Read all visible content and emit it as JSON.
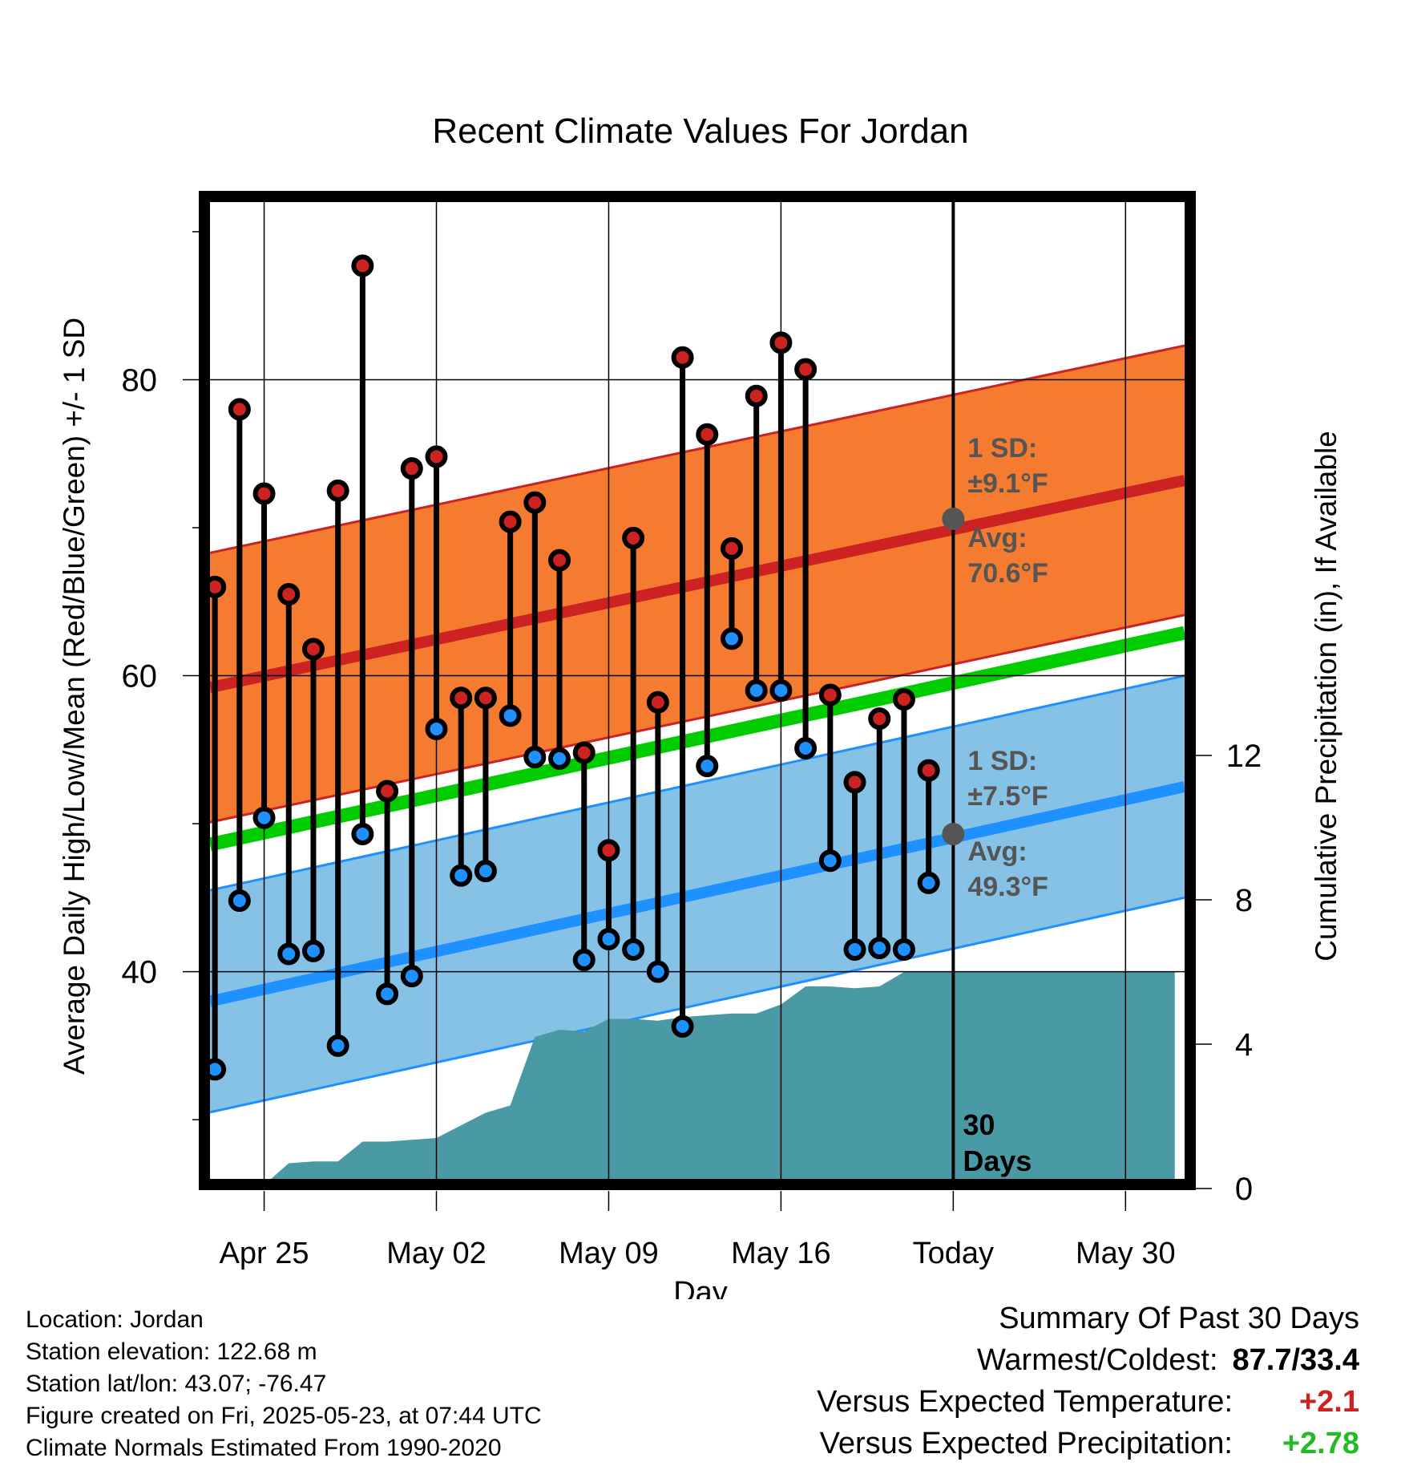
{
  "chart_data": {
    "type": "line",
    "title": "Recent Climate Values For Jordan",
    "xlabel": "Day",
    "ylabel": "Average Daily High/Low/Mean (Red/Blue/Green) +/- 1 SD",
    "ylabel_right": "Cumulative Precipitation (in), If Available",
    "ylim": [
      26,
      92
    ],
    "ylim_right": [
      0,
      24
    ],
    "x_ticks": [
      {
        "day": 3,
        "label": "Apr 25"
      },
      {
        "day": 10,
        "label": "May 02"
      },
      {
        "day": 17,
        "label": "May 09"
      },
      {
        "day": 24,
        "label": "May 16"
      },
      {
        "day": 31,
        "label": "Today"
      },
      {
        "day": 38,
        "label": "May 30"
      }
    ],
    "y_ticks": [
      40,
      60,
      80
    ],
    "y_ticks_right": [
      0,
      4,
      8,
      12
    ],
    "grid": true,
    "colors": {
      "high": "#cc2222",
      "low": "#1e90ff",
      "mean": "#00cc00",
      "high_band": "#f47b30",
      "low_band": "#86c1e6",
      "precip": "#4a9aa5"
    },
    "days": [
      1,
      2,
      3,
      4,
      5,
      6,
      7,
      8,
      9,
      10,
      11,
      12,
      13,
      14,
      15,
      16,
      17,
      18,
      19,
      20,
      21,
      22,
      23,
      24,
      25,
      26,
      27,
      28,
      29,
      30
    ],
    "observed_high": [
      66.0,
      78.0,
      72.3,
      65.5,
      61.8,
      72.5,
      87.7,
      52.2,
      74.0,
      74.8,
      58.5,
      58.5,
      70.4,
      71.7,
      67.8,
      54.8,
      48.2,
      69.3,
      58.2,
      81.5,
      76.3,
      68.6,
      78.9,
      82.5,
      80.7,
      58.7,
      52.8,
      57.1,
      58.4,
      53.6
    ],
    "observed_low": [
      33.4,
      44.8,
      50.4,
      41.2,
      41.4,
      35.0,
      49.3,
      38.5,
      39.7,
      56.4,
      46.5,
      46.8,
      57.3,
      54.5,
      54.4,
      40.8,
      42.2,
      41.5,
      40.0,
      36.3,
      53.9,
      62.5,
      59.0,
      59.0,
      55.1,
      47.5,
      41.5,
      41.6,
      41.5,
      46.0
    ],
    "normal_high": {
      "start": 59.2,
      "end": 73.2,
      "sd": 9.1
    },
    "normal_low": {
      "start": 38.0,
      "end": 52.5,
      "sd": 7.5
    },
    "normal_mean": {
      "start": 48.6,
      "end": 62.9
    },
    "precip_days": [
      0,
      1,
      2,
      3,
      4,
      5,
      6,
      7,
      8,
      9,
      10,
      11,
      12,
      13,
      14,
      15,
      16,
      17,
      18,
      19,
      20,
      21,
      22,
      23,
      24,
      25,
      26,
      27,
      28,
      29,
      30,
      40
    ],
    "precip_cumulative": [
      0,
      0,
      0,
      0.1,
      0.7,
      0.75,
      0.75,
      1.3,
      1.3,
      1.35,
      1.4,
      1.75,
      2.1,
      2.3,
      4.2,
      4.4,
      4.35,
      4.7,
      4.7,
      4.65,
      4.75,
      4.8,
      4.85,
      4.85,
      5.1,
      5.6,
      5.6,
      5.55,
      5.6,
      6.0,
      6.0,
      6.0
    ],
    "today_day": 31,
    "today_label_line1": "30",
    "today_label_line2": "Days",
    "annotations": {
      "high_sd_line1": "1 SD:",
      "high_sd_line2": "±9.1°F",
      "high_avg_line1": "Avg:",
      "high_avg_line2": "70.6°F",
      "low_sd_line1": "1 SD:",
      "low_sd_line2": "±7.5°F",
      "low_avg_line1": "Avg:",
      "low_avg_line2": "49.3°F",
      "high_avg_value": 70.6,
      "low_avg_value": 49.3
    }
  },
  "info": {
    "location": "Location: Jordan",
    "elevation": "Station elevation: 122.68 m",
    "latlon": "Station lat/lon: 43.07; -76.47",
    "created": "Figure created on Fri, 2025-05-23, at 07:44 UTC",
    "normals": "Climate Normals Estimated From 1990-2020"
  },
  "summary": {
    "title": "Summary Of Past 30 Days",
    "warm_cold_label": "Warmest/Coldest:",
    "warm_cold_value": "87.7/33.4",
    "temp_label": "Versus Expected Temperature:",
    "temp_value": "+2.1",
    "temp_color": "#cc2222",
    "precip_label": "Versus Expected Precipitation:",
    "precip_value": "+2.78",
    "precip_color": "#22bb22"
  }
}
